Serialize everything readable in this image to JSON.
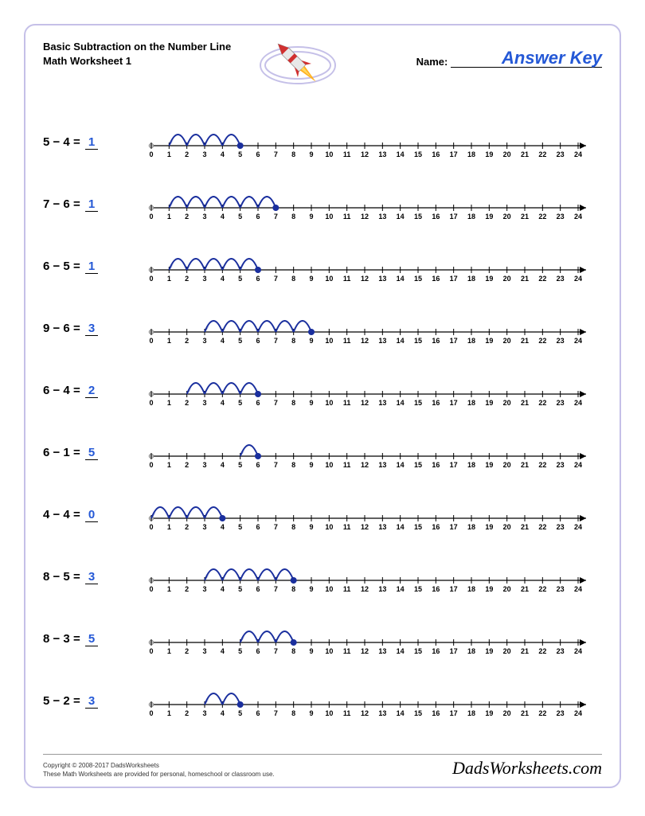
{
  "worksheet": {
    "title_line1": "Basic Subtraction on the Number Line",
    "title_line2": "Math Worksheet 1",
    "name_label": "Name:",
    "answer_key_text": "Answer Key"
  },
  "numberline": {
    "min": 0,
    "max": 24,
    "tick_color": "#000000",
    "axis_color": "#000000",
    "arc_color": "#1a2f9e",
    "arc_width": 2,
    "dot_color": "#1a2f9e",
    "dot_radius": 4,
    "arrow_color": "#1a2f9e",
    "label_fontsize": 9
  },
  "problems": [
    {
      "a": 5,
      "b": 4,
      "answer": 1
    },
    {
      "a": 7,
      "b": 6,
      "answer": 1
    },
    {
      "a": 6,
      "b": 5,
      "answer": 1
    },
    {
      "a": 9,
      "b": 6,
      "answer": 3
    },
    {
      "a": 6,
      "b": 4,
      "answer": 2
    },
    {
      "a": 6,
      "b": 1,
      "answer": 5
    },
    {
      "a": 4,
      "b": 4,
      "answer": 0
    },
    {
      "a": 8,
      "b": 5,
      "answer": 3
    },
    {
      "a": 8,
      "b": 3,
      "answer": 5
    },
    {
      "a": 5,
      "b": 2,
      "answer": 3
    }
  ],
  "footer": {
    "copyright": "Copyright © 2008-2017 DadsWorksheets",
    "note": "These Math Worksheets are provided for personal, homeschool or classroom use.",
    "brand": "DadsWorksheets.com"
  },
  "rocket": {
    "ring_outer": "#c5c0e8",
    "ring_inner": "#ffffff",
    "body": "#e8e8e8",
    "tip": "#d13030",
    "stripe": "#d13030",
    "flame1": "#ffb020",
    "flame2": "#ffd860"
  }
}
